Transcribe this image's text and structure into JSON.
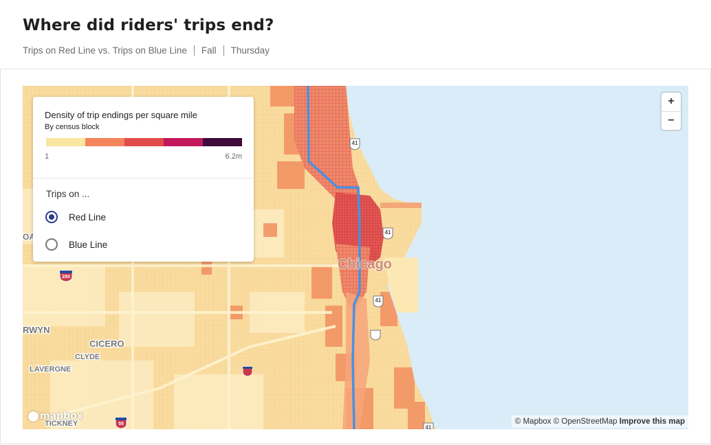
{
  "header": {
    "title": "Where did riders' trips end?",
    "filters": [
      "Trips on Red Line vs. Trips on Blue Line",
      "Fall",
      "Thursday"
    ]
  },
  "legend": {
    "title": "Density of trip endings per square mile",
    "subtitle": "By census block",
    "min_label": "1",
    "max_label": "6.2m",
    "colors": [
      "#fbe5a2",
      "#f4845c",
      "#e14c4a",
      "#c2185b",
      "#3f0a3c"
    ],
    "trips_label": "Trips on ...",
    "options": [
      {
        "label": "Red Line",
        "selected": true
      },
      {
        "label": "Blue Line",
        "selected": false
      }
    ]
  },
  "map": {
    "place_labels": {
      "city": "Chicago",
      "cicero": "CICERO",
      "clyde": "CLYDE",
      "lavergne": "LAVERGNE",
      "berwyn_fragment": "RWYN",
      "oak_fragment": "OA",
      "stickney_fragment": "TICKNEY"
    },
    "route_shields": {
      "us41_a": "41",
      "us41_b": "41",
      "us41_c": "41",
      "us41_d": "41",
      "i290": "290",
      "i55": "55"
    },
    "colors": {
      "water": "#d9ecf7",
      "land": "#fbe8b3",
      "route_line": "#4a90e2"
    },
    "zoom_in": "+",
    "zoom_out": "−",
    "attribution": {
      "mapbox": "© Mapbox",
      "osm": "© OpenStreetMap",
      "improve": "Improve this map"
    },
    "logo_text": "mapbox"
  }
}
